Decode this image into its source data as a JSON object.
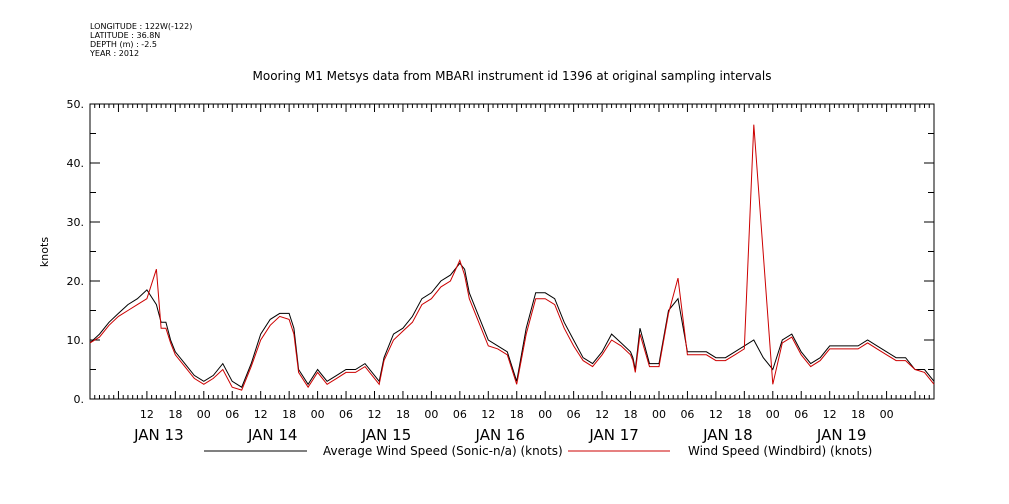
{
  "header": {
    "lines": [
      "LONGITUDE : 122W(-122)",
      "LATITUDE : 36.8N",
      "DEPTH (m) : -2.5",
      "YEAR : 2012"
    ]
  },
  "chart_data": {
    "type": "line",
    "title": "Mooring M1 Metsys data from MBARI instrument id 1396 at original sampling intervals",
    "ylabel": "knots",
    "xlabel": "",
    "ylim": [
      0,
      50
    ],
    "xlim": [
      0,
      178
    ],
    "x_units": "hours since Jan 13 00:00",
    "yticks": [
      "0.",
      "10.",
      "20.",
      "30.",
      "40.",
      "50."
    ],
    "xticks": [
      {
        "x": 12,
        "label": "12"
      },
      {
        "x": 18,
        "label": "18"
      },
      {
        "x": 24,
        "label": "00"
      },
      {
        "x": 30,
        "label": "06"
      },
      {
        "x": 36,
        "label": "12"
      },
      {
        "x": 42,
        "label": "18"
      },
      {
        "x": 48,
        "label": "00"
      },
      {
        "x": 54,
        "label": "06"
      },
      {
        "x": 60,
        "label": "12"
      },
      {
        "x": 66,
        "label": "18"
      },
      {
        "x": 72,
        "label": "00"
      },
      {
        "x": 78,
        "label": "06"
      },
      {
        "x": 84,
        "label": "12"
      },
      {
        "x": 90,
        "label": "18"
      },
      {
        "x": 96,
        "label": "00"
      },
      {
        "x": 102,
        "label": "06"
      },
      {
        "x": 108,
        "label": "12"
      },
      {
        "x": 114,
        "label": "18"
      },
      {
        "x": 120,
        "label": "00"
      },
      {
        "x": 126,
        "label": "06"
      },
      {
        "x": 132,
        "label": "12"
      },
      {
        "x": 138,
        "label": "18"
      },
      {
        "x": 144,
        "label": "00"
      },
      {
        "x": 150,
        "label": "06"
      },
      {
        "x": 156,
        "label": "12"
      },
      {
        "x": 162,
        "label": "18"
      },
      {
        "x": 168,
        "label": "00"
      }
    ],
    "day_labels": [
      {
        "x": 12,
        "label": "JAN 13"
      },
      {
        "x": 36,
        "label": "JAN 14"
      },
      {
        "x": 60,
        "label": "JAN 15"
      },
      {
        "x": 84,
        "label": "JAN 16"
      },
      {
        "x": 108,
        "label": "JAN 17"
      },
      {
        "x": 132,
        "label": "JAN 18"
      },
      {
        "x": 156,
        "label": "JAN 19"
      }
    ],
    "grid": false,
    "legend": "bottom",
    "series": [
      {
        "name": "Average Wind Speed (Sonic-n/a) (knots)",
        "color": "#000000",
        "x": [
          0,
          2,
          4,
          6,
          8,
          10,
          12,
          14,
          15,
          16,
          17,
          18,
          20,
          22,
          24,
          26,
          28,
          30,
          32,
          34,
          36,
          38,
          40,
          42,
          43,
          44,
          46,
          48,
          50,
          52,
          54,
          56,
          58,
          60,
          61,
          62,
          64,
          66,
          68,
          70,
          72,
          74,
          76,
          78,
          79,
          80,
          82,
          84,
          86,
          88,
          90,
          92,
          94,
          96,
          98,
          100,
          102,
          104,
          106,
          108,
          110,
          112,
          114,
          114.5,
          115,
          116,
          118,
          120,
          122,
          124,
          126,
          128,
          130,
          132,
          134,
          136,
          138,
          140,
          142,
          144,
          146,
          148,
          150,
          152,
          154,
          156,
          158,
          160,
          162,
          164,
          166,
          168,
          170,
          172,
          174,
          176,
          178
        ],
        "y": [
          9.5,
          11,
          13,
          14.5,
          16,
          17,
          18.5,
          16,
          13,
          13,
          10,
          8,
          6,
          4,
          3,
          4,
          6,
          3,
          2,
          6,
          11,
          13.5,
          14.5,
          14.5,
          12,
          5,
          2.5,
          5,
          3,
          4,
          5,
          5,
          6,
          4,
          3,
          7,
          11,
          12,
          14,
          17,
          18,
          20,
          21,
          23,
          22,
          18,
          14,
          10,
          9,
          8,
          3,
          12,
          18,
          18,
          17,
          13,
          10,
          7,
          6,
          8,
          11,
          9.5,
          8,
          7,
          5,
          12,
          6,
          6,
          15,
          17,
          8,
          8,
          8,
          7,
          7,
          8,
          9,
          10,
          7,
          5,
          10,
          11,
          8,
          6,
          7,
          9,
          9,
          9,
          9,
          10,
          9,
          8,
          7,
          7,
          5,
          5,
          3
        ]
      },
      {
        "name": "Wind Speed (Windbird) (knots)",
        "color": "#cc0000",
        "x": [
          0,
          2,
          4,
          6,
          8,
          10,
          12,
          14,
          15,
          16,
          17,
          18,
          20,
          22,
          24,
          26,
          28,
          30,
          32,
          34,
          36,
          38,
          40,
          42,
          43,
          44,
          46,
          48,
          50,
          52,
          54,
          56,
          58,
          60,
          61,
          62,
          64,
          66,
          68,
          70,
          72,
          74,
          76,
          78,
          79,
          80,
          82,
          84,
          86,
          88,
          90,
          92,
          94,
          96,
          98,
          100,
          102,
          104,
          106,
          108,
          110,
          112,
          114,
          114.5,
          115,
          116,
          118,
          120,
          122,
          124,
          126,
          128,
          130,
          132,
          134,
          136,
          138,
          140,
          142,
          144,
          146,
          148,
          150,
          152,
          154,
          156,
          158,
          160,
          162,
          164,
          166,
          168,
          170,
          172,
          174,
          176,
          178
        ],
        "y": [
          9.5,
          10.5,
          12.5,
          14,
          15,
          16,
          17,
          22,
          12,
          12,
          9.5,
          7.5,
          5.5,
          3.5,
          2.5,
          3.5,
          5,
          2,
          1.5,
          5.5,
          10,
          12.5,
          14,
          13.5,
          11,
          4.5,
          2,
          4.5,
          2.5,
          3.5,
          4.5,
          4.5,
          5.5,
          3.5,
          2.5,
          6.5,
          10,
          11.5,
          13,
          16,
          17,
          19,
          20,
          23.5,
          21,
          17,
          13,
          9,
          8.5,
          7.5,
          2.5,
          11,
          17,
          17,
          16,
          12,
          9,
          6.5,
          5.5,
          7.5,
          10,
          9,
          7.5,
          6.5,
          4.5,
          11,
          5.5,
          5.5,
          14.5,
          20.5,
          7.5,
          7.5,
          7.5,
          6.5,
          6.5,
          7.5,
          8.5,
          46.5,
          24.5,
          2.5,
          9.5,
          10.5,
          7.5,
          5.5,
          6.5,
          8.5,
          8.5,
          8.5,
          8.5,
          9.5,
          8.5,
          7.5,
          6.5,
          6.5,
          5,
          4.5,
          2.5
        ]
      }
    ]
  }
}
